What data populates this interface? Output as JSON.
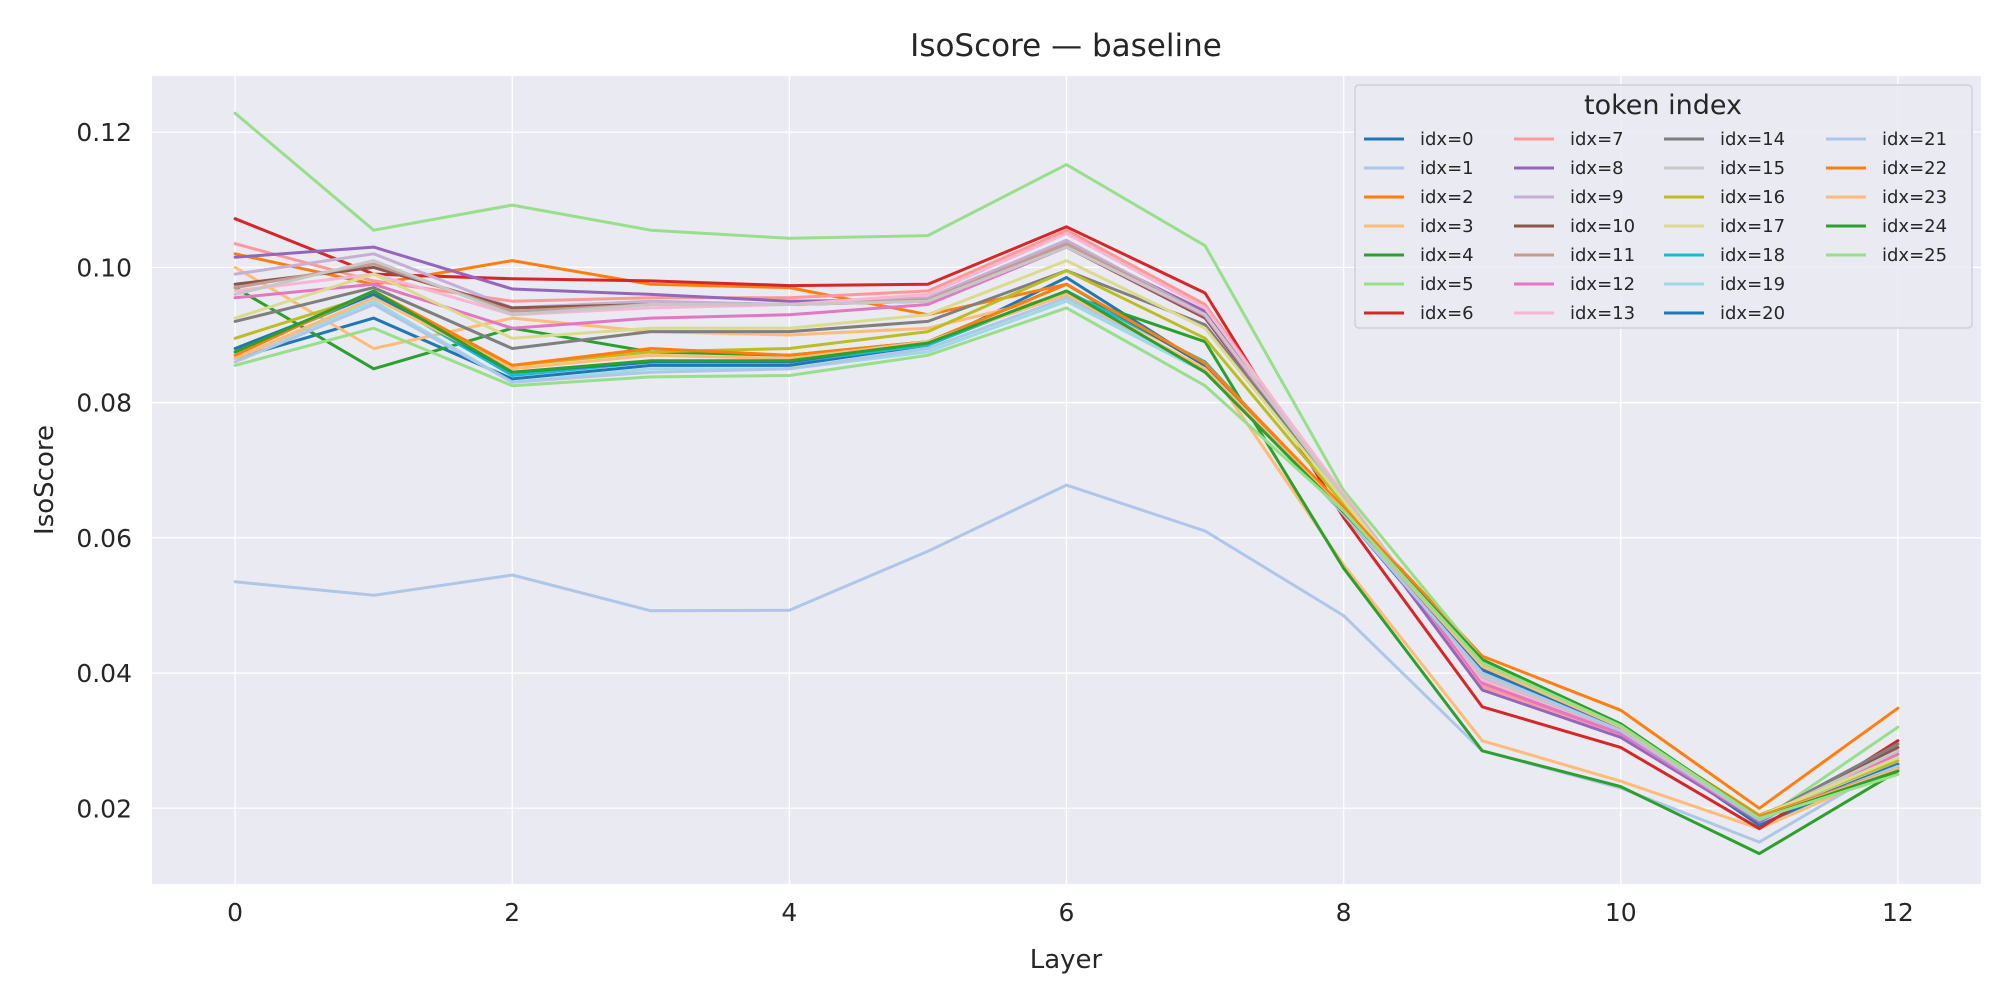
{
  "chart_data": {
    "type": "line",
    "title": "IsoScore — baseline",
    "xlabel": "Layer",
    "ylabel": "IsoScore",
    "xlim": [
      -0.6,
      12.6
    ],
    "ylim": [
      0.0088,
      0.1283
    ],
    "xticks": [
      "0",
      "2",
      "4",
      "6",
      "8",
      "10",
      "12"
    ],
    "yticks": [
      "0.02",
      "0.04",
      "0.06",
      "0.08",
      "0.10",
      "0.12"
    ],
    "grid": true,
    "legend": {
      "title": "token index",
      "placement": "top-right",
      "columns": 4
    },
    "x": [
      0,
      1,
      2,
      3,
      4,
      5,
      6,
      7,
      8,
      9,
      10,
      11,
      12
    ],
    "series": [
      {
        "name": "idx=0",
        "color": "#1f77b4",
        "values": [
          0.0865,
          0.0925,
          0.0835,
          0.0855,
          0.0855,
          0.0885,
          0.0985,
          0.0855,
          0.0635,
          0.0395,
          0.0315,
          0.0175,
          0.0265
        ]
      },
      {
        "name": "idx=1",
        "color": "#aec7e8",
        "values": [
          0.0535,
          0.0515,
          0.0545,
          0.0492,
          0.0493,
          0.058,
          0.0678,
          0.061,
          0.0485,
          0.0285,
          0.023,
          0.015,
          0.027
        ]
      },
      {
        "name": "idx=2",
        "color": "#ff7f0e",
        "values": [
          0.102,
          0.0975,
          0.101,
          0.0975,
          0.097,
          0.093,
          0.0975,
          0.0855,
          0.0645,
          0.0425,
          0.0345,
          0.02,
          0.0348
        ]
      },
      {
        "name": "idx=3",
        "color": "#ffbb78",
        "values": [
          0.1,
          0.088,
          0.0925,
          0.0905,
          0.09,
          0.091,
          0.096,
          0.086,
          0.056,
          0.03,
          0.024,
          0.017,
          0.026
        ]
      },
      {
        "name": "idx=4",
        "color": "#2ca02c",
        "values": [
          0.097,
          0.085,
          0.091,
          0.0875,
          0.087,
          0.089,
          0.096,
          0.089,
          0.0555,
          0.0285,
          0.0232,
          0.0133,
          0.0255
        ]
      },
      {
        "name": "idx=5",
        "color": "#98df8a",
        "values": [
          0.1228,
          0.1055,
          0.1092,
          0.1055,
          0.1043,
          0.1047,
          0.1152,
          0.1032,
          0.067,
          0.042,
          0.031,
          0.018,
          0.032
        ]
      },
      {
        "name": "idx=6",
        "color": "#d62728",
        "values": [
          0.1072,
          0.099,
          0.0983,
          0.098,
          0.0973,
          0.0975,
          0.106,
          0.0962,
          0.063,
          0.035,
          0.029,
          0.017,
          0.03
        ]
      },
      {
        "name": "idx=7",
        "color": "#ff9896",
        "values": [
          0.1035,
          0.098,
          0.095,
          0.0955,
          0.0955,
          0.0965,
          0.1055,
          0.0945,
          0.066,
          0.038,
          0.031,
          0.018,
          0.029
        ]
      },
      {
        "name": "idx=8",
        "color": "#9467bd",
        "values": [
          0.1015,
          0.103,
          0.0968,
          0.096,
          0.095,
          0.0952,
          0.1035,
          0.0935,
          0.065,
          0.0375,
          0.0305,
          0.018,
          0.0285
        ]
      },
      {
        "name": "idx=9",
        "color": "#c5b0d5",
        "values": [
          0.099,
          0.102,
          0.094,
          0.095,
          0.0945,
          0.0955,
          0.104,
          0.093,
          0.066,
          0.039,
          0.0315,
          0.0185,
          0.028
        ]
      },
      {
        "name": "idx=10",
        "color": "#8c564b",
        "values": [
          0.0975,
          0.1,
          0.094,
          0.0945,
          0.0945,
          0.095,
          0.103,
          0.0925,
          0.0655,
          0.0395,
          0.0315,
          0.0185,
          0.029
        ]
      },
      {
        "name": "idx=11",
        "color": "#c49c94",
        "values": [
          0.097,
          0.1005,
          0.0935,
          0.0945,
          0.0945,
          0.0952,
          0.1035,
          0.093,
          0.0655,
          0.039,
          0.0312,
          0.0182,
          0.0285
        ]
      },
      {
        "name": "idx=12",
        "color": "#e377c2",
        "values": [
          0.0955,
          0.0975,
          0.091,
          0.0925,
          0.093,
          0.0945,
          0.103,
          0.0928,
          0.0655,
          0.0385,
          0.031,
          0.0182,
          0.028
        ]
      },
      {
        "name": "idx=13",
        "color": "#f7b6d2",
        "values": [
          0.0965,
          0.099,
          0.093,
          0.094,
          0.0945,
          0.096,
          0.105,
          0.094,
          0.0665,
          0.039,
          0.0315,
          0.0185,
          0.0285
        ]
      },
      {
        "name": "idx=14",
        "color": "#7f7f7f",
        "values": [
          0.092,
          0.097,
          0.088,
          0.0905,
          0.0905,
          0.092,
          0.0995,
          0.0915,
          0.066,
          0.0395,
          0.0315,
          0.0185,
          0.0295
        ]
      },
      {
        "name": "idx=15",
        "color": "#c7c7c7",
        "values": [
          0.096,
          0.101,
          0.093,
          0.0945,
          0.0945,
          0.095,
          0.103,
          0.093,
          0.066,
          0.0395,
          0.0315,
          0.0185,
          0.0285
        ]
      },
      {
        "name": "idx=16",
        "color": "#bcbd22",
        "values": [
          0.0895,
          0.096,
          0.0855,
          0.0875,
          0.088,
          0.0905,
          0.0995,
          0.0895,
          0.065,
          0.041,
          0.032,
          0.019,
          0.027
        ]
      },
      {
        "name": "idx=17",
        "color": "#dbdb8d",
        "values": [
          0.0925,
          0.099,
          0.0895,
          0.091,
          0.091,
          0.093,
          0.101,
          0.091,
          0.0655,
          0.04,
          0.0318,
          0.0188,
          0.0275
        ]
      },
      {
        "name": "idx=18",
        "color": "#17becf",
        "values": [
          0.0875,
          0.096,
          0.084,
          0.086,
          0.086,
          0.0885,
          0.0965,
          0.086,
          0.064,
          0.0405,
          0.0318,
          0.0185,
          0.026
        ]
      },
      {
        "name": "idx=19",
        "color": "#9edae5",
        "values": [
          0.0865,
          0.095,
          0.083,
          0.085,
          0.085,
          0.0875,
          0.095,
          0.0845,
          0.064,
          0.04,
          0.0315,
          0.0185,
          0.0265
        ]
      },
      {
        "name": "idx=20",
        "color": "#1f77b4",
        "values": [
          0.088,
          0.096,
          0.0845,
          0.086,
          0.086,
          0.089,
          0.0975,
          0.0855,
          0.0638,
          0.0405,
          0.0318,
          0.0183,
          0.0265
        ]
      },
      {
        "name": "idx=21",
        "color": "#aec7e8",
        "values": [
          0.086,
          0.0945,
          0.083,
          0.0845,
          0.085,
          0.088,
          0.0955,
          0.085,
          0.0635,
          0.04,
          0.0315,
          0.0183,
          0.0262
        ]
      },
      {
        "name": "idx=22",
        "color": "#ff7f0e",
        "values": [
          0.087,
          0.0965,
          0.0855,
          0.088,
          0.087,
          0.089,
          0.0975,
          0.0858,
          0.0645,
          0.042,
          0.0322,
          0.0188,
          0.0258
        ]
      },
      {
        "name": "idx=23",
        "color": "#ffbb78",
        "values": [
          0.0865,
          0.0955,
          0.085,
          0.087,
          0.0865,
          0.089,
          0.096,
          0.085,
          0.064,
          0.041,
          0.032,
          0.0185,
          0.0258
        ]
      },
      {
        "name": "idx=24",
        "color": "#2ca02c",
        "values": [
          0.0875,
          0.0965,
          0.0845,
          0.0862,
          0.0862,
          0.0888,
          0.0965,
          0.0845,
          0.0638,
          0.042,
          0.0325,
          0.0185,
          0.0255
        ]
      },
      {
        "name": "idx=25",
        "color": "#98df8a",
        "values": [
          0.0855,
          0.091,
          0.0825,
          0.0838,
          0.084,
          0.087,
          0.094,
          0.0825,
          0.064,
          0.0415,
          0.0322,
          0.0185,
          0.025
        ]
      }
    ]
  }
}
